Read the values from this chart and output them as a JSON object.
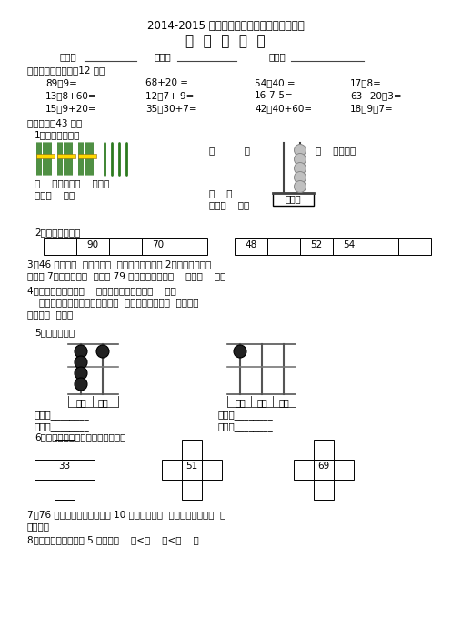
{
  "title1": "2014-2015 学年度第二学期期中质量检测试卷",
  "title2": "一  年  级  数  学",
  "school_label": "学校：",
  "name_label": "姓名：",
  "score_label": "成绩：",
  "section1": "一、直接写出得数（12 分）",
  "row1": [
    "89－9=",
    "68+20 =",
    "54－40 =",
    "17－8="
  ],
  "row2": [
    "13－8+60=",
    "12－7+ 9=",
    "16-7-5=",
    "63+20－3="
  ],
  "row3": [
    "15－9+20=",
    "35－30+7=",
    "42－40+60=",
    "18－9－7="
  ],
  "section2": "二、填空（43 分）",
  "q1": "1、看图填一填。",
  "q2": "2、按规律填数。",
  "table1_values": [
    "",
    "90",
    "",
    "70",
    ""
  ],
  "table2_values": [
    "48",
    "",
    "52",
    "54",
    "",
    ""
  ],
  "q3_line1": "3、46 里面有（  ）个十和（  ）个一。个位上是 2，十位上的数比",
  "q3_line2": "个位大 7，这个数是（  ）。与 79 相邻的两个数是（    ）和（    ）。",
  "q4_line1": "4、最大的两位数是（    ）。最小的两位数是（    ）。",
  "q4_line2": "    一个数从右边数起，第一位是（  ）位，第二位是（  ）位，第",
  "q4_line3": "三位是（  ）位。",
  "q5": "5、看图填数。",
  "abacus1_label1": "十位",
  "abacus1_label2": "个位",
  "abacus2_label1": "百位",
  "abacus2_label2": "十位",
  "abacus2_label3": "个位",
  "write1": "写作：________",
  "write2": "写作：________",
  "read1": "读作：________",
  "read2": "读作：________",
  "q6": "6、在下面的空格中填上适当的数。",
  "q6_num1": "33",
  "q6_num2": "51",
  "q6_num3": "69",
  "q7_line1": "7、76 个桃子，每个篮子里装 10 个，能装满（  ）个篮子，还多（  ）",
  "q7_line2": "个桃子。",
  "q8": "8、写出三个个位上是 5 的数：（    ）<（    ）<（    ）",
  "bg_color": "#ffffff",
  "text_color": "#000000",
  "font_size": 7.5,
  "line_color": "#333333"
}
